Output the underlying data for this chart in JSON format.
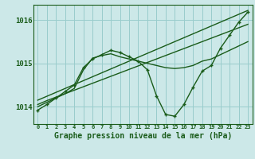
{
  "title": "Graphe pression niveau de la mer (hPa)",
  "bg_color": "#cce8e8",
  "grid_color": "#99cccc",
  "line_color": "#1a5c1a",
  "x_min": -0.5,
  "x_max": 23.5,
  "y_min": 1013.6,
  "y_max": 1016.35,
  "yticks": [
    1014,
    1015,
    1016
  ],
  "xticks": [
    0,
    1,
    2,
    3,
    4,
    5,
    6,
    7,
    8,
    9,
    10,
    11,
    12,
    13,
    14,
    15,
    16,
    17,
    18,
    19,
    20,
    21,
    22,
    23
  ],
  "series": [
    {
      "x": [
        0,
        1,
        2,
        3,
        4,
        5,
        6,
        7,
        8,
        9,
        10,
        11,
        12,
        13,
        14,
        15,
        16,
        17,
        18,
        19,
        20,
        21,
        22,
        23
      ],
      "y": [
        1014.15,
        1014.24,
        1014.33,
        1014.42,
        1014.51,
        1014.6,
        1014.69,
        1014.78,
        1014.87,
        1014.96,
        1015.05,
        1015.14,
        1015.23,
        1015.32,
        1015.41,
        1015.5,
        1015.59,
        1015.68,
        1015.77,
        1015.86,
        1015.95,
        1016.04,
        1016.13,
        1016.22
      ],
      "marker": false,
      "lw": 1.0
    },
    {
      "x": [
        0,
        1,
        2,
        3,
        4,
        5,
        6,
        7,
        8,
        9,
        10,
        11,
        12,
        13,
        14,
        15,
        16,
        17,
        18,
        19,
        20,
        21,
        22,
        23
      ],
      "y": [
        1014.05,
        1014.14,
        1014.22,
        1014.3,
        1014.38,
        1014.46,
        1014.54,
        1014.62,
        1014.7,
        1014.78,
        1014.86,
        1014.94,
        1015.02,
        1015.1,
        1015.18,
        1015.26,
        1015.34,
        1015.42,
        1015.5,
        1015.58,
        1015.66,
        1015.74,
        1015.82,
        1015.9
      ],
      "marker": false,
      "lw": 1.0
    },
    {
      "x": [
        0,
        1,
        2,
        3,
        4,
        5,
        6,
        7,
        8,
        9,
        10,
        11,
        12,
        13,
        14,
        15,
        16,
        17,
        18,
        19,
        20,
        21,
        22,
        23
      ],
      "y": [
        1014.0,
        1014.1,
        1014.2,
        1014.3,
        1014.42,
        1014.85,
        1015.12,
        1015.18,
        1015.22,
        1015.15,
        1015.1,
        1015.05,
        1015.0,
        1014.95,
        1014.9,
        1014.88,
        1014.9,
        1014.95,
        1015.05,
        1015.1,
        1015.2,
        1015.3,
        1015.4,
        1015.5
      ],
      "marker": false,
      "lw": 1.0
    },
    {
      "x": [
        0,
        1,
        2,
        3,
        4,
        5,
        6,
        7,
        8,
        9,
        10,
        11,
        12,
        13,
        14,
        15,
        16,
        17,
        18,
        19,
        20,
        21,
        22,
        23
      ],
      "y": [
        1013.92,
        1014.05,
        1014.2,
        1014.35,
        1014.5,
        1014.9,
        1015.1,
        1015.2,
        1015.3,
        1015.25,
        1015.15,
        1015.05,
        1014.85,
        1014.25,
        1013.82,
        1013.78,
        1014.05,
        1014.45,
        1014.82,
        1014.95,
        1015.35,
        1015.65,
        1015.95,
        1016.18
      ],
      "marker": true,
      "lw": 1.0
    }
  ]
}
